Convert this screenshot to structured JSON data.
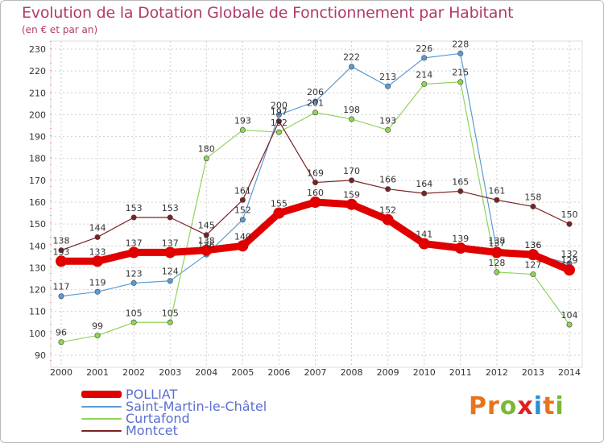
{
  "header": {
    "title": "Evolution de la Dotation Globale de Fonctionnement par Habitant",
    "subtitle": "(en € et par an)"
  },
  "logo": {
    "letters": [
      "P",
      "r",
      "o",
      "x",
      "i",
      "t",
      "i"
    ]
  },
  "colors": {
    "background": "#ffffff",
    "grid": "#cfcfcf",
    "title": "#b13a6b",
    "legend_text": "#5a6fcf",
    "logo_letters": [
      "#e8731e",
      "#e8731e",
      "#7ab833",
      "#e02020",
      "#2a8fd6",
      "#e8731e",
      "#7ab833"
    ]
  },
  "chart_data": {
    "type": "line",
    "title": "Evolution de la Dotation Globale de Fonctionnement par Habitant",
    "subtitle": "(en € et par an)",
    "xlabel": "",
    "ylabel": "",
    "categories": [
      "2000",
      "2001",
      "2002",
      "2003",
      "2004",
      "2005",
      "2006",
      "2007",
      "2008",
      "2009",
      "2010",
      "2011",
      "2012",
      "2013",
      "2014"
    ],
    "ylim": [
      90,
      230
    ],
    "yticks": [
      90,
      100,
      110,
      120,
      130,
      140,
      150,
      160,
      170,
      180,
      190,
      200,
      210,
      220,
      230
    ],
    "grid": true,
    "legend_position": "bottom-left",
    "series": [
      {
        "name": "POLLIAT",
        "color": "#e00000",
        "emphasis": true,
        "values": [
          133,
          133,
          137,
          137,
          138,
          140,
          155,
          160,
          159,
          152,
          141,
          139,
          137,
          136,
          129
        ]
      },
      {
        "name": "Saint-Martin-le-Châtel",
        "color": "#5b9bd5",
        "emphasis": false,
        "values": [
          117,
          119,
          123,
          124,
          136,
          152,
          200,
          206,
          222,
          213,
          226,
          228,
          138,
          136,
          132
        ]
      },
      {
        "name": "Curtafond",
        "color": "#8fd45a",
        "emphasis": false,
        "values": [
          96,
          99,
          105,
          105,
          180,
          193,
          192,
          201,
          198,
          193,
          214,
          215,
          128,
          127,
          104
        ]
      },
      {
        "name": "Montcet",
        "color": "#7a2222",
        "emphasis": false,
        "values": [
          138,
          144,
          153,
          153,
          145,
          161,
          197,
          169,
          170,
          166,
          164,
          165,
          161,
          158,
          150
        ]
      }
    ]
  }
}
